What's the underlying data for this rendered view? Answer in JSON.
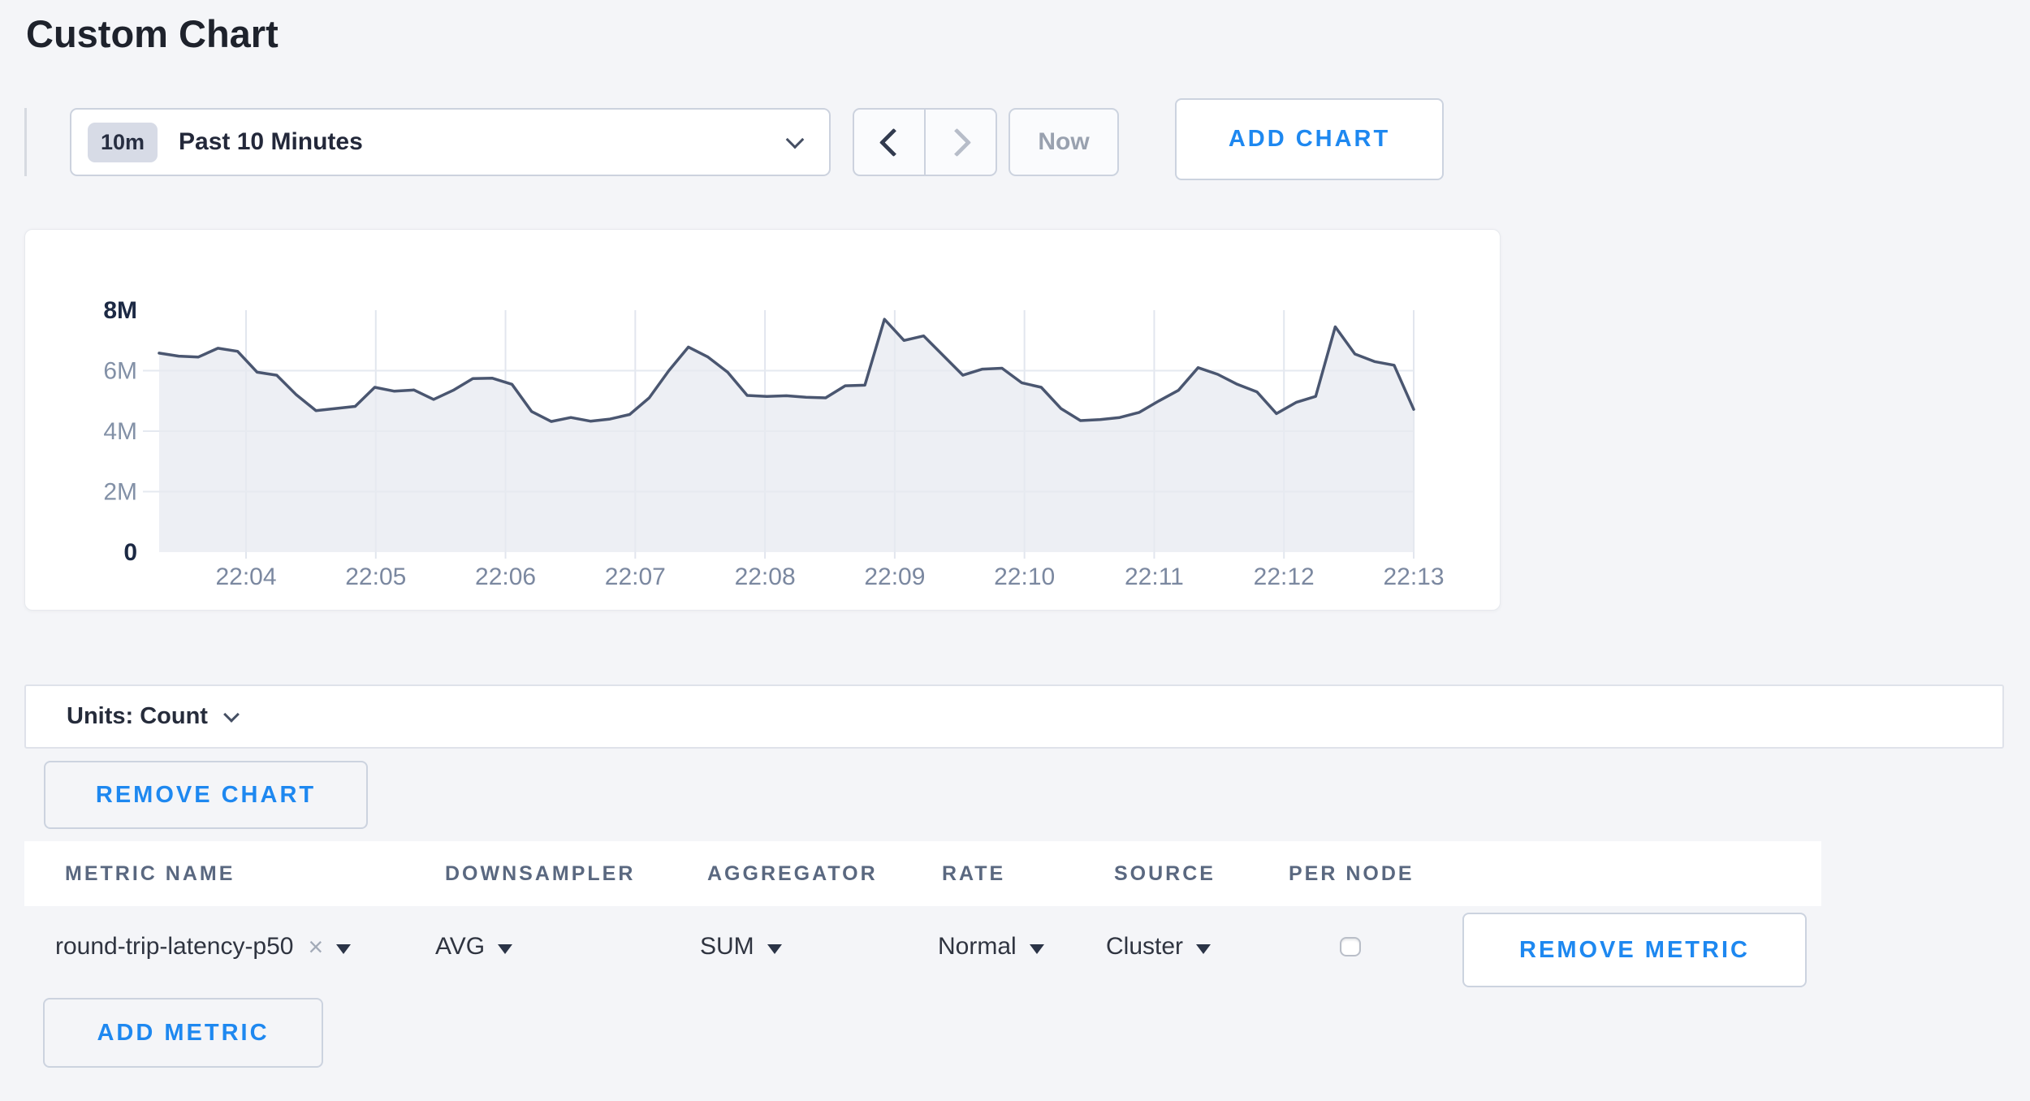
{
  "page": {
    "title": "Custom Chart"
  },
  "colors": {
    "accent_blue": "#1e88f0",
    "line": "#4a5670",
    "area_fill": "#e7eaf0",
    "grid": "#e2e6ee",
    "axis_strong": "#1c2944",
    "axis_muted": "#8391a7",
    "tick_label": "#7b88a0"
  },
  "toolbar": {
    "time_window_badge": "10m",
    "time_window_label": "Past 10 Minutes",
    "now_label": "Now",
    "add_chart_label": "ADD CHART"
  },
  "chart_data": {
    "type": "area",
    "title": "",
    "xlabel": "",
    "ylabel": "",
    "grid": true,
    "legend": "none",
    "ylim_millions": [
      0,
      8
    ],
    "x_ticks": [
      "22:04",
      "22:05",
      "22:06",
      "22:07",
      "22:08",
      "22:09",
      "22:10",
      "22:11",
      "22:12",
      "22:13"
    ],
    "y_ticks": [
      {
        "label": "8M",
        "value_millions": 8,
        "strong": true,
        "gridline": false
      },
      {
        "label": "6M",
        "value_millions": 6,
        "strong": false,
        "gridline": true
      },
      {
        "label": "4M",
        "value_millions": 4,
        "strong": false,
        "gridline": true
      },
      {
        "label": "2M",
        "value_millions": 2,
        "strong": false,
        "gridline": true
      },
      {
        "label": "0",
        "value_millions": 0,
        "strong": true,
        "gridline": false
      }
    ],
    "series": [
      {
        "name": "round-trip-latency-p50",
        "values_millions": [
          6.58,
          6.48,
          6.45,
          6.74,
          6.64,
          5.95,
          5.85,
          5.2,
          4.68,
          4.75,
          4.82,
          5.45,
          5.32,
          5.36,
          5.05,
          5.35,
          5.74,
          5.75,
          5.55,
          4.65,
          4.32,
          4.45,
          4.33,
          4.4,
          4.55,
          5.1,
          6.0,
          6.78,
          6.45,
          5.95,
          5.18,
          5.15,
          5.17,
          5.12,
          5.1,
          5.5,
          5.52,
          7.7,
          7.0,
          7.15,
          6.5,
          5.85,
          6.05,
          6.08,
          5.6,
          5.45,
          4.75,
          4.35,
          4.38,
          4.45,
          4.62,
          5.0,
          5.35,
          6.1,
          5.88,
          5.55,
          5.3,
          4.58,
          4.95,
          5.15,
          7.45,
          6.55,
          6.3,
          6.18,
          4.72
        ]
      }
    ]
  },
  "units_bar": {
    "label": "Units: Count"
  },
  "chart_actions": {
    "remove_chart_label": "REMOVE CHART"
  },
  "metrics_table": {
    "headers": [
      "METRIC NAME",
      "DOWNSAMPLER",
      "AGGREGATOR",
      "RATE",
      "SOURCE",
      "PER NODE"
    ],
    "rows": [
      {
        "metric_name": "round-trip-latency-p50",
        "remove_tag_glyph": "×",
        "downsampler": "AVG",
        "aggregator": "SUM",
        "rate": "Normal",
        "source": "Cluster",
        "per_node_checked": false,
        "remove_label": "REMOVE METRIC"
      }
    ],
    "add_metric_label": "ADD METRIC"
  }
}
